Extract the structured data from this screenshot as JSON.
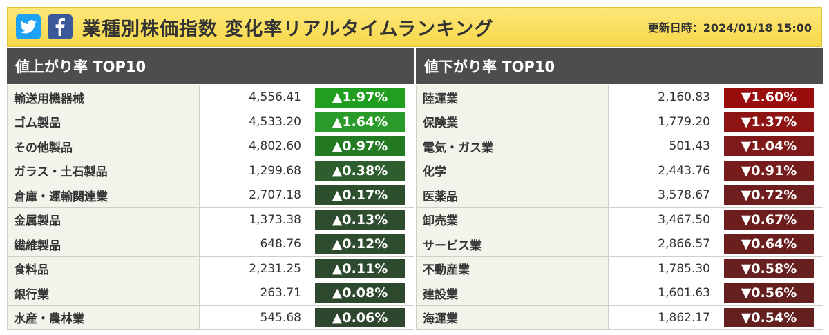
{
  "header": {
    "title": "業種別株価指数 変化率リアルタイムランキング",
    "updated": "更新日時：2024/01/18 15:00",
    "icons": [
      "twitter-icon",
      "facebook-icon"
    ],
    "colors": {
      "twitter": "#1da1f2",
      "facebook": "#3b5998",
      "bar": "#f7d84a"
    }
  },
  "gainers": {
    "heading": "値上がり率 TOP10",
    "rows": [
      {
        "name": "輸送用機器械",
        "value": "4,556.41",
        "change": "▲1.97%",
        "color": "#1f9e1f"
      },
      {
        "name": "ゴム製品",
        "value": "4,533.20",
        "change": "▲1.64%",
        "color": "#2a9a2a"
      },
      {
        "name": "その他製品",
        "value": "4,802.60",
        "change": "▲0.97%",
        "color": "#237a23"
      },
      {
        "name": "ガラス・土石製品",
        "value": "1,299.68",
        "change": "▲0.38%",
        "color": "#2e5e2e"
      },
      {
        "name": "倉庫・運輸関連業",
        "value": "2,707.18",
        "change": "▲0.17%",
        "color": "#2e4f2e"
      },
      {
        "name": "金属製品",
        "value": "1,373.38",
        "change": "▲0.13%",
        "color": "#2e4c2e"
      },
      {
        "name": "繊維製品",
        "value": "648.76",
        "change": "▲0.12%",
        "color": "#2e4c2e"
      },
      {
        "name": "食料品",
        "value": "2,231.25",
        "change": "▲0.11%",
        "color": "#2e4a2e"
      },
      {
        "name": "銀行業",
        "value": "263.71",
        "change": "▲0.08%",
        "color": "#2e482e"
      },
      {
        "name": "水産・農林業",
        "value": "545.68",
        "change": "▲0.06%",
        "color": "#2e462e"
      }
    ]
  },
  "losers": {
    "heading": "値下がり率 TOP10",
    "rows": [
      {
        "name": "陸運業",
        "value": "2,160.83",
        "change": "▼1.60%",
        "color": "#9a0d0d"
      },
      {
        "name": "保険業",
        "value": "1,779.20",
        "change": "▼1.37%",
        "color": "#8e1414"
      },
      {
        "name": "電気・ガス業",
        "value": "501.43",
        "change": "▼1.04%",
        "color": "#7e1a1a"
      },
      {
        "name": "化学",
        "value": "2,443.76",
        "change": "▼0.91%",
        "color": "#761c1c"
      },
      {
        "name": "医薬品",
        "value": "3,578.67",
        "change": "▼0.72%",
        "color": "#6e1e1e"
      },
      {
        "name": "卸売業",
        "value": "3,467.50",
        "change": "▼0.67%",
        "color": "#6c1e1e"
      },
      {
        "name": "サービス業",
        "value": "2,866.57",
        "change": "▼0.64%",
        "color": "#6a1e1e"
      },
      {
        "name": "不動産業",
        "value": "1,785.30",
        "change": "▼0.58%",
        "color": "#681f1f"
      },
      {
        "name": "建設業",
        "value": "1,601.63",
        "change": "▼0.56%",
        "color": "#661f1f"
      },
      {
        "name": "海運業",
        "value": "1,862.17",
        "change": "▼0.54%",
        "color": "#641f1f"
      }
    ]
  }
}
